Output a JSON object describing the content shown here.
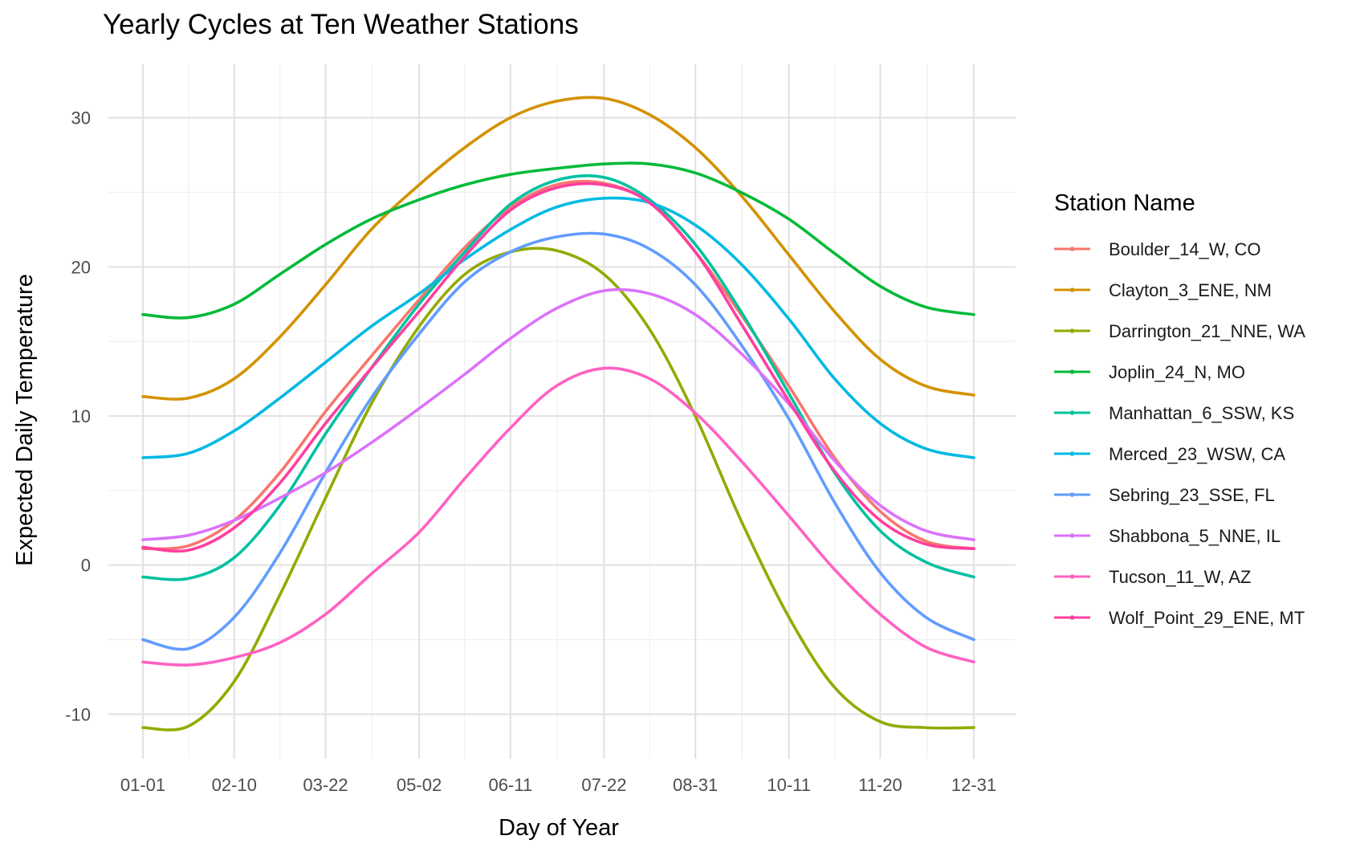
{
  "chart_data": {
    "type": "line",
    "title": "Yearly Cycles at Ten Weather Stations",
    "xlabel": "Day of Year",
    "ylabel": "Expected Daily Temperature",
    "x_unit": "day of year",
    "xlim": [
      1,
      365
    ],
    "ylim": [
      -13,
      32
    ],
    "x_ticks": [
      {
        "day": 1,
        "label": "01-01"
      },
      {
        "day": 41,
        "label": "02-10"
      },
      {
        "day": 81,
        "label": "03-22"
      },
      {
        "day": 122,
        "label": "05-02"
      },
      {
        "day": 162,
        "label": "06-11"
      },
      {
        "day": 203,
        "label": "07-22"
      },
      {
        "day": 243,
        "label": "08-31"
      },
      {
        "day": 284,
        "label": "10-11"
      },
      {
        "day": 324,
        "label": "11-20"
      },
      {
        "day": 365,
        "label": "12-31"
      }
    ],
    "y_ticks": [
      {
        "value": -10,
        "label": "-10"
      },
      {
        "value": 0,
        "label": "0"
      },
      {
        "value": 10,
        "label": "10"
      },
      {
        "value": 20,
        "label": "20"
      },
      {
        "value": 30,
        "label": "30"
      }
    ],
    "grid": true,
    "legend": {
      "title": "Station Name",
      "position": "right"
    },
    "x": [
      1,
      21,
      41,
      61,
      81,
      101,
      122,
      142,
      162,
      182,
      203,
      223,
      243,
      263,
      284,
      304,
      324,
      344,
      365
    ],
    "series": [
      {
        "name": "Boulder_14_W, CO",
        "color": "#F8766D",
        "values": [
          1.1,
          1.3,
          3.0,
          6.2,
          10.3,
          14.0,
          17.8,
          21.3,
          24.0,
          25.5,
          25.6,
          24.3,
          21.0,
          16.8,
          12.0,
          7.2,
          3.6,
          1.6,
          1.1
        ]
      },
      {
        "name": "Clayton_3_ENE, NM",
        "color": "#D39200",
        "values": [
          11.3,
          11.2,
          12.5,
          15.3,
          18.8,
          22.5,
          25.5,
          28.0,
          30.0,
          31.1,
          31.3,
          30.2,
          28.0,
          24.8,
          20.8,
          17.0,
          13.8,
          12.0,
          11.4
        ]
      },
      {
        "name": "Darrington_21_NNE, WA",
        "color": "#93AA00",
        "values": [
          -10.9,
          -10.8,
          -7.8,
          -2.0,
          4.5,
          10.8,
          16.0,
          19.5,
          21.0,
          21.1,
          19.5,
          15.8,
          10.0,
          3.0,
          -3.5,
          -8.2,
          -10.5,
          -10.9,
          -10.9
        ]
      },
      {
        "name": "Joplin_24_N, MO",
        "color": "#00BA38",
        "values": [
          16.8,
          16.6,
          17.5,
          19.5,
          21.5,
          23.2,
          24.5,
          25.5,
          26.2,
          26.6,
          26.9,
          26.9,
          26.3,
          25.0,
          23.2,
          20.9,
          18.7,
          17.3,
          16.8
        ]
      },
      {
        "name": "Manhattan_6_SSW, KS",
        "color": "#00C19F",
        "values": [
          -0.8,
          -0.9,
          0.5,
          4.0,
          8.8,
          13.2,
          17.5,
          21.0,
          24.2,
          25.8,
          26.0,
          24.5,
          21.5,
          17.0,
          11.5,
          6.2,
          2.3,
          0.2,
          -0.8
        ]
      },
      {
        "name": "Merced_23_WSW, CA",
        "color": "#00B9E3",
        "values": [
          7.2,
          7.5,
          9.0,
          11.2,
          13.6,
          16.0,
          18.2,
          20.5,
          22.5,
          24.0,
          24.6,
          24.3,
          22.8,
          20.2,
          16.5,
          12.5,
          9.5,
          7.8,
          7.2
        ]
      },
      {
        "name": "Sebring_23_SSE, FL",
        "color": "#619CFF",
        "values": [
          -5.0,
          -5.6,
          -3.5,
          0.8,
          6.2,
          11.2,
          15.5,
          19.0,
          21.0,
          22.0,
          22.2,
          21.2,
          18.8,
          14.8,
          9.8,
          4.2,
          -0.5,
          -3.5,
          -5.0
        ]
      },
      {
        "name": "Shabbona_5_NNE, IL",
        "color": "#DB72FB",
        "values": [
          1.7,
          2.0,
          3.0,
          4.5,
          6.2,
          8.2,
          10.5,
          12.8,
          15.2,
          17.2,
          18.4,
          18.2,
          16.8,
          14.2,
          10.8,
          7.0,
          4.0,
          2.3,
          1.7
        ]
      },
      {
        "name": "Tucson_11_W, AZ",
        "color": "#FF61C3",
        "values": [
          -6.5,
          -6.7,
          -6.2,
          -5.2,
          -3.3,
          -0.6,
          2.2,
          5.8,
          9.2,
          12.0,
          13.2,
          12.5,
          10.2,
          7.0,
          3.3,
          -0.3,
          -3.3,
          -5.5,
          -6.5
        ]
      },
      {
        "name": "Wolf_Point_29_ENE, MT",
        "color": "#FF3FA0",
        "values": [
          1.2,
          1.0,
          2.5,
          5.5,
          9.5,
          13.2,
          17.0,
          20.7,
          23.8,
          25.3,
          25.5,
          24.3,
          21.0,
          16.2,
          11.0,
          6.3,
          3.0,
          1.4,
          1.1
        ]
      }
    ]
  }
}
